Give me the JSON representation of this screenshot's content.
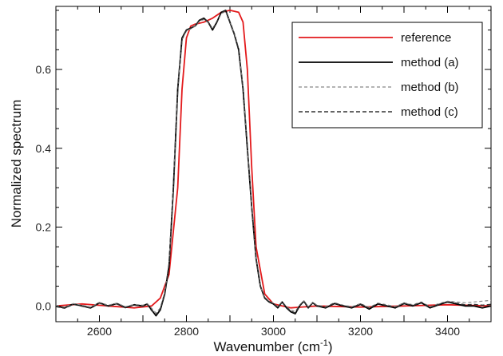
{
  "chart_data": {
    "type": "line",
    "xlabel": "Wavenumber (cm",
    "xlabel_sup": "-1",
    "xlabel_suffix": ")",
    "ylabel": "Normalized spectrum",
    "xlim": [
      2500,
      3500
    ],
    "ylim": [
      -0.04,
      0.76
    ],
    "x_ticks": [
      2600,
      2800,
      3000,
      3200,
      3400
    ],
    "x_tick_labels": [
      "2600",
      "2800",
      "3000",
      "3200",
      "3400"
    ],
    "y_ticks": [
      0.0,
      0.2,
      0.4,
      0.6
    ],
    "y_tick_labels": [
      "0.0",
      "0.2",
      "0.4",
      "0.6"
    ],
    "grid": false,
    "legend_position": "top-right",
    "series": [
      {
        "name": "reference",
        "color": "#e31a1c",
        "style": "solid",
        "x": [
          2500,
          2560,
          2620,
          2680,
          2720,
          2740,
          2760,
          2780,
          2790,
          2800,
          2810,
          2820,
          2840,
          2860,
          2880,
          2900,
          2920,
          2930,
          2940,
          2950,
          2960,
          2980,
          3000,
          3040,
          3100,
          3200,
          3300,
          3400,
          3500
        ],
        "values": [
          0.0,
          0.005,
          0.0,
          -0.005,
          0.0,
          0.02,
          0.08,
          0.3,
          0.55,
          0.68,
          0.71,
          0.715,
          0.72,
          0.73,
          0.745,
          0.75,
          0.745,
          0.72,
          0.6,
          0.35,
          0.15,
          0.03,
          0.005,
          -0.005,
          0.0,
          -0.003,
          0.0,
          0.003,
          0.0
        ]
      },
      {
        "name": "method (a)",
        "color": "#000000",
        "style": "solid",
        "x": [
          2500,
          2520,
          2540,
          2560,
          2580,
          2600,
          2620,
          2640,
          2660,
          2680,
          2700,
          2710,
          2720,
          2730,
          2740,
          2750,
          2760,
          2770,
          2780,
          2790,
          2800,
          2810,
          2820,
          2830,
          2840,
          2850,
          2860,
          2870,
          2880,
          2890,
          2900,
          2910,
          2920,
          2930,
          2940,
          2950,
          2960,
          2970,
          2980,
          2990,
          3000,
          3010,
          3020,
          3030,
          3040,
          3050,
          3060,
          3070,
          3080,
          3090,
          3100,
          3120,
          3140,
          3160,
          3180,
          3200,
          3220,
          3240,
          3260,
          3280,
          3300,
          3320,
          3340,
          3360,
          3380,
          3400,
          3420,
          3440,
          3460,
          3480,
          3500
        ],
        "values": [
          0.0,
          -0.005,
          0.005,
          0.0,
          -0.005,
          0.008,
          0.0,
          0.006,
          -0.004,
          0.003,
          0.0,
          0.005,
          -0.01,
          -0.025,
          -0.01,
          0.03,
          0.1,
          0.3,
          0.55,
          0.68,
          0.7,
          0.705,
          0.71,
          0.725,
          0.73,
          0.72,
          0.7,
          0.72,
          0.745,
          0.75,
          0.72,
          0.69,
          0.65,
          0.55,
          0.4,
          0.25,
          0.12,
          0.05,
          0.02,
          0.01,
          0.005,
          -0.005,
          0.01,
          -0.005,
          -0.015,
          -0.02,
          0.0,
          0.012,
          -0.005,
          0.008,
          0.0,
          -0.005,
          0.006,
          0.0,
          -0.005,
          0.004,
          -0.008,
          0.005,
          0.0,
          -0.005,
          0.006,
          0.0,
          0.008,
          -0.005,
          0.003,
          0.01,
          0.005,
          0.0,
          0.0,
          -0.005,
          0.0
        ]
      },
      {
        "name": "method (b)",
        "color": "#888888",
        "style": "dashed-light",
        "x": [
          2500,
          2520,
          2540,
          2560,
          2580,
          2600,
          2620,
          2640,
          2660,
          2680,
          2700,
          2710,
          2720,
          2730,
          2740,
          2750,
          2760,
          2770,
          2780,
          2790,
          2800,
          2810,
          2820,
          2830,
          2840,
          2850,
          2860,
          2870,
          2880,
          2890,
          2900,
          2910,
          2920,
          2930,
          2940,
          2950,
          2960,
          2970,
          2980,
          2990,
          3000,
          3010,
          3020,
          3030,
          3040,
          3050,
          3060,
          3070,
          3080,
          3090,
          3100,
          3120,
          3140,
          3160,
          3180,
          3200,
          3220,
          3240,
          3260,
          3280,
          3300,
          3320,
          3340,
          3360,
          3380,
          3400,
          3420,
          3440,
          3460,
          3480,
          3500
        ],
        "values": [
          0.002,
          -0.003,
          0.006,
          0.002,
          -0.003,
          0.009,
          0.002,
          0.007,
          -0.002,
          0.004,
          0.002,
          0.006,
          -0.006,
          -0.018,
          -0.005,
          0.035,
          0.11,
          0.31,
          0.55,
          0.675,
          0.698,
          0.703,
          0.71,
          0.722,
          0.727,
          0.718,
          0.703,
          0.722,
          0.742,
          0.747,
          0.722,
          0.692,
          0.652,
          0.552,
          0.4,
          0.25,
          0.12,
          0.05,
          0.022,
          0.012,
          0.007,
          -0.002,
          0.011,
          -0.002,
          -0.01,
          -0.014,
          0.002,
          0.013,
          -0.002,
          0.009,
          0.002,
          -0.002,
          0.008,
          0.002,
          -0.002,
          0.006,
          -0.004,
          0.007,
          0.003,
          -0.002,
          0.008,
          0.003,
          0.01,
          -0.002,
          0.006,
          0.012,
          0.01,
          0.008,
          0.01,
          0.012,
          0.014
        ]
      },
      {
        "name": "method (c)",
        "color": "#333333",
        "style": "dashed",
        "x": [
          2500,
          2520,
          2540,
          2560,
          2580,
          2600,
          2620,
          2640,
          2660,
          2680,
          2700,
          2710,
          2720,
          2730,
          2740,
          2750,
          2760,
          2770,
          2780,
          2790,
          2800,
          2810,
          2820,
          2830,
          2840,
          2850,
          2860,
          2870,
          2880,
          2890,
          2900,
          2910,
          2920,
          2930,
          2940,
          2950,
          2960,
          2970,
          2980,
          2990,
          3000,
          3010,
          3020,
          3030,
          3040,
          3050,
          3060,
          3070,
          3080,
          3090,
          3100,
          3120,
          3140,
          3160,
          3180,
          3200,
          3220,
          3240,
          3260,
          3280,
          3300,
          3320,
          3340,
          3360,
          3380,
          3400,
          3420,
          3440,
          3460,
          3480,
          3500
        ],
        "values": [
          -0.002,
          -0.006,
          0.004,
          -0.001,
          -0.006,
          0.007,
          -0.001,
          0.005,
          -0.005,
          0.002,
          -0.001,
          0.004,
          -0.012,
          -0.022,
          -0.008,
          0.032,
          0.105,
          0.305,
          0.552,
          0.678,
          0.699,
          0.704,
          0.712,
          0.724,
          0.729,
          0.721,
          0.702,
          0.721,
          0.744,
          0.749,
          0.721,
          0.691,
          0.651,
          0.551,
          0.4,
          0.25,
          0.121,
          0.051,
          0.021,
          0.011,
          0.006,
          -0.004,
          0.01,
          -0.004,
          -0.013,
          -0.018,
          0.001,
          0.012,
          -0.004,
          0.008,
          0.001,
          -0.004,
          0.007,
          0.001,
          -0.004,
          0.005,
          -0.006,
          0.006,
          0.001,
          -0.004,
          0.007,
          0.001,
          0.009,
          -0.004,
          0.004,
          0.011,
          0.007,
          0.003,
          0.004,
          0.002,
          0.004
        ]
      }
    ]
  }
}
